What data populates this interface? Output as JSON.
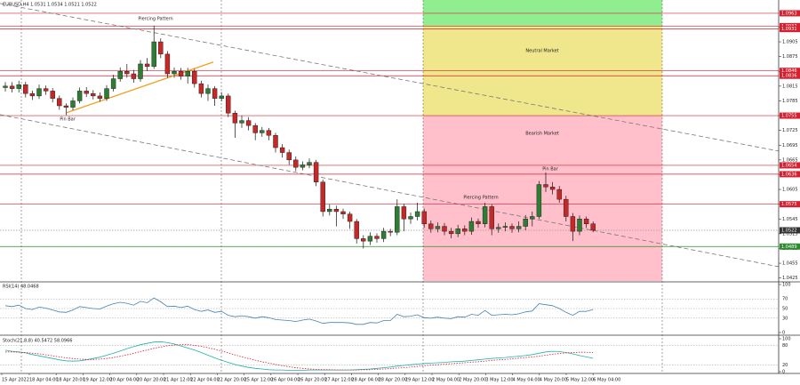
{
  "chart_data": [
    {
      "type": "candlestick",
      "header": "EURUSD,H4  1.0531 1.0534 1.0521 1.0522",
      "ylim": [
        1.0419,
        1.099
      ],
      "yticks": [
        1.0425,
        1.0455,
        1.0485,
        1.0515,
        1.0545,
        1.0575,
        1.0605,
        1.0635,
        1.0665,
        1.0695,
        1.0725,
        1.0755,
        1.0785,
        1.0815,
        1.0845,
        1.0875,
        1.0905,
        1.0935
      ],
      "x_labels": [
        "15 Apr 2022",
        "18 Apr 04:00",
        "18 Apr 20:00",
        "19 Apr 12:00",
        "20 Apr 04:00",
        "20 Apr 20:00",
        "21 Apr 12:00",
        "22 Apr 04:00",
        "22 Apr 20:00",
        "25 Apr 12:00",
        "26 Apr 04:00",
        "26 Apr 20:00",
        "27 Apr 12:00",
        "28 Apr 04:00",
        "28 Apr 20:00",
        "29 Apr 12:00",
        "2 May 04:00",
        "2 May 20:00",
        "3 May 12:00",
        "4 May 04:00",
        "4 May 20:00",
        "5 May 12:00",
        "6 May 04:00"
      ],
      "up_color": "#2e7d32",
      "down_color": "#c62828",
      "open": [
        1.0812,
        1.0815,
        1.081,
        1.0818,
        1.08,
        1.0795,
        1.081,
        1.0805,
        1.079,
        1.0775,
        1.0772,
        1.0785,
        1.0805,
        1.08,
        1.0795,
        1.079,
        1.081,
        1.083,
        1.0845,
        1.084,
        1.083,
        1.086,
        1.0855,
        1.0905,
        1.088,
        1.084,
        1.0845,
        1.0835,
        1.0845,
        1.082,
        1.08,
        1.081,
        1.079,
        1.0795,
        1.076,
        1.074,
        1.0745,
        1.0735,
        1.072,
        1.0725,
        1.0715,
        1.069,
        1.068,
        1.0665,
        1.065,
        1.0655,
        1.066,
        1.062,
        1.056,
        1.0565,
        1.056,
        1.0555,
        1.054,
        1.0505,
        1.05,
        1.051,
        1.0505,
        1.052,
        1.0518,
        1.057,
        1.0545,
        1.055,
        1.056,
        1.0535,
        1.0525,
        1.053,
        1.052,
        1.0515,
        1.0525,
        1.052,
        1.054,
        1.0535,
        1.057,
        1.0525,
        1.0528,
        1.053,
        1.0525,
        1.053,
        1.0545,
        1.055,
        1.0615,
        1.061,
        1.0605,
        1.0585,
        1.055,
        1.052,
        1.0545,
        1.0535
      ],
      "high": [
        1.0823,
        1.0823,
        1.0826,
        1.0824,
        1.0806,
        1.0818,
        1.0816,
        1.0811,
        1.0796,
        1.078,
        1.0792,
        1.0812,
        1.0813,
        1.0807,
        1.0802,
        1.0817,
        1.0838,
        1.0853,
        1.086,
        1.0848,
        1.0868,
        1.0872,
        1.0938,
        1.0912,
        1.0886,
        1.0853,
        1.0852,
        1.0852,
        1.085,
        1.0826,
        1.0818,
        1.0815,
        1.0803,
        1.08,
        1.0765,
        1.0755,
        1.0752,
        1.074,
        1.0732,
        1.073,
        1.072,
        1.0697,
        1.0686,
        1.0672,
        1.0662,
        1.0668,
        1.0665,
        1.0625,
        1.0575,
        1.0572,
        1.0566,
        1.056,
        1.0545,
        1.0512,
        1.0518,
        1.0516,
        1.0527,
        1.0525,
        1.0585,
        1.0576,
        1.0558,
        1.0578,
        1.0566,
        1.0542,
        1.0538,
        1.0537,
        1.0527,
        1.0533,
        1.0532,
        1.0548,
        1.0546,
        1.0578,
        1.0575,
        1.0536,
        1.0538,
        1.0536,
        1.054,
        1.0553,
        1.056,
        1.0622,
        1.064,
        1.062,
        1.0612,
        1.0592,
        1.0557,
        1.0552,
        1.055,
        1.054
      ],
      "low": [
        1.0804,
        1.0802,
        1.0802,
        1.0792,
        1.0787,
        1.0789,
        1.0797,
        1.0782,
        1.0767,
        1.0756,
        1.0766,
        1.078,
        1.0793,
        1.0788,
        1.0783,
        1.0785,
        1.0804,
        1.0824,
        1.0832,
        1.0822,
        1.0824,
        1.0846,
        1.085,
        1.0872,
        1.0832,
        1.0832,
        1.0828,
        1.082,
        1.0812,
        1.0792,
        1.0785,
        1.0775,
        1.0784,
        1.0752,
        1.071,
        1.073,
        1.0725,
        1.0705,
        1.0712,
        1.0705,
        1.068,
        1.067,
        1.0655,
        1.0642,
        1.0644,
        1.0648,
        1.0612,
        1.055,
        1.0552,
        1.053,
        1.0545,
        1.0525,
        1.0495,
        1.0485,
        1.0492,
        1.0497,
        1.0498,
        1.051,
        1.0512,
        1.052,
        1.0535,
        1.0542,
        1.0527,
        1.0517,
        1.0518,
        1.0512,
        1.0506,
        1.0508,
        1.0512,
        1.0513,
        1.0527,
        1.0528,
        1.0512,
        1.0517,
        1.052,
        1.0517,
        1.0518,
        1.0522,
        1.053,
        1.0545,
        1.06,
        1.0595,
        1.0578,
        1.054,
        1.05,
        1.0512,
        1.0527,
        1.0518
      ],
      "close": [
        1.0815,
        1.081,
        1.0818,
        1.08,
        1.0795,
        1.081,
        1.0805,
        1.079,
        1.0775,
        1.0772,
        1.0785,
        1.0805,
        1.08,
        1.0795,
        1.079,
        1.081,
        1.083,
        1.0845,
        1.084,
        1.083,
        1.086,
        1.0855,
        1.0905,
        1.088,
        1.084,
        1.0845,
        1.0835,
        1.0845,
        1.082,
        1.08,
        1.081,
        1.079,
        1.0795,
        1.076,
        1.074,
        1.0745,
        1.0735,
        1.072,
        1.0725,
        1.0715,
        1.069,
        1.068,
        1.0665,
        1.065,
        1.0655,
        1.066,
        1.062,
        1.056,
        1.0565,
        1.056,
        1.0555,
        1.054,
        1.0505,
        1.05,
        1.051,
        1.0505,
        1.052,
        1.0518,
        1.057,
        1.0545,
        1.055,
        1.056,
        1.0535,
        1.0525,
        1.053,
        1.052,
        1.0515,
        1.0525,
        1.052,
        1.054,
        1.0535,
        1.057,
        1.0525,
        1.0528,
        1.053,
        1.0525,
        1.053,
        1.0545,
        1.055,
        1.0615,
        1.061,
        1.0605,
        1.0585,
        1.055,
        1.052,
        1.0545,
        1.0535,
        1.0522
      ],
      "zones": [
        {
          "low": 1.0937,
          "high": 1.099,
          "color": "#90ee90"
        },
        {
          "low": 1.0755,
          "high": 1.0937,
          "color": "#f0e68c",
          "label": "Neutral Market"
        },
        {
          "low": 1.0419,
          "high": 1.0755,
          "color": "#ffc0cb",
          "label": "Bearish Market"
        }
      ],
      "levels": [
        {
          "value": 1.0963,
          "color": "#d42030"
        },
        {
          "value": 1.0937,
          "color": "#d42030"
        },
        {
          "value": 1.0931,
          "color": "#d42030"
        },
        {
          "value": 1.0846,
          "color": "#d42030"
        },
        {
          "value": 1.0836,
          "color": "#d42030"
        },
        {
          "value": 1.0755,
          "color": "#d42030"
        },
        {
          "value": 1.0654,
          "color": "#d42030"
        },
        {
          "value": 1.0636,
          "color": "#d42030"
        },
        {
          "value": 1.0575,
          "color": "#d42030"
        },
        {
          "value": 1.0489,
          "color": "#2e8b2e"
        },
        {
          "value": 1.0522,
          "color": "#333333",
          "style": "dotted"
        }
      ],
      "trendlines": [
        {
          "from": 1.0983,
          "to": 1.0683,
          "color": "#777777",
          "style": "dashed"
        },
        {
          "from": 1.0757,
          "to": 1.0448,
          "color": "#777777",
          "style": "dashed"
        },
        {
          "from": 1.0761,
          "to": 1.0864,
          "color": "#f0a020",
          "style": "solid"
        }
      ],
      "annotations": [
        "Piercing Pattern",
        "Pin Bar",
        "Pin Bar",
        "Piercing Pattern"
      ]
    },
    {
      "type": "line",
      "title": "RSI(14) 48.0468",
      "ylim": [
        0,
        100
      ],
      "yticks": [
        0,
        30,
        50,
        70,
        100
      ],
      "series": [
        {
          "color": "#4682b4",
          "values": [
            56,
            54,
            57,
            50,
            48,
            53,
            51,
            47,
            43,
            42,
            47,
            54,
            52,
            50,
            49,
            55,
            60,
            63,
            61,
            57,
            65,
            62,
            72,
            64,
            54,
            55,
            52,
            55,
            48,
            44,
            47,
            42,
            44,
            36,
            33,
            35,
            33,
            30,
            33,
            31,
            27,
            26,
            25,
            23,
            26,
            28,
            24,
            19,
            21,
            21,
            21,
            20,
            17,
            17,
            21,
            20,
            25,
            25,
            38,
            33,
            34,
            37,
            31,
            30,
            32,
            30,
            29,
            33,
            32,
            38,
            36,
            46,
            36,
            37,
            38,
            37,
            39,
            43,
            45,
            60,
            58,
            56,
            50,
            42,
            36,
            44,
            44,
            48.0468
          ]
        }
      ]
    },
    {
      "type": "line",
      "title": "Stoch(21,8,8) 40.5472 58.0966",
      "ylim": [
        0,
        100
      ],
      "yticks": [
        0,
        20,
        80,
        100
      ],
      "series": [
        {
          "color": "#20b2aa",
          "values": [
            65,
            62,
            60,
            57,
            52,
            48,
            44,
            40,
            36,
            33,
            32,
            33,
            36,
            40,
            44,
            50,
            56,
            63,
            70,
            76,
            82,
            86,
            90,
            91,
            88,
            84,
            78,
            72,
            66,
            58,
            50,
            42,
            35,
            28,
            22,
            17,
            13,
            10,
            8,
            6,
            5,
            5,
            4,
            4,
            4,
            5,
            5,
            5,
            5,
            5,
            5,
            5,
            6,
            7,
            8,
            10,
            12,
            14,
            17,
            19,
            21,
            23,
            25,
            26,
            27,
            28,
            30,
            31,
            32,
            34,
            36,
            38,
            40,
            42,
            43,
            45,
            47,
            49,
            52,
            56,
            60,
            62,
            61,
            58,
            54,
            49,
            45,
            40.5472
          ]
        },
        {
          "color": "#d42030",
          "style": "dotted",
          "values": [
            60,
            60,
            59,
            58,
            56,
            54,
            51,
            48,
            45,
            42,
            40,
            38,
            37,
            37,
            38,
            40,
            43,
            47,
            51,
            56,
            61,
            66,
            71,
            75,
            79,
            81,
            82,
            82,
            80,
            77,
            73,
            68,
            63,
            57,
            51,
            45,
            40,
            35,
            30,
            26,
            22,
            18,
            15,
            12,
            10,
            8,
            7,
            6,
            6,
            5,
            5,
            5,
            5,
            6,
            6,
            7,
            8,
            9,
            11,
            12,
            14,
            16,
            18,
            20,
            21,
            23,
            24,
            26,
            27,
            29,
            30,
            32,
            34,
            36,
            37,
            39,
            41,
            43,
            45,
            47,
            50,
            53,
            55,
            57,
            58,
            59,
            59,
            58.0966
          ]
        }
      ]
    }
  ]
}
